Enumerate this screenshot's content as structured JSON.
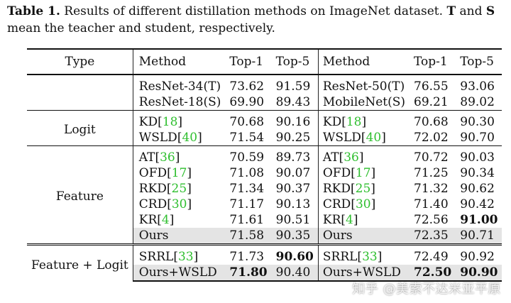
{
  "caption": {
    "label": "Table 1.",
    "text_a": " Results of different distillation methods on ImageNet dataset. ",
    "T": "T",
    "and": " and ",
    "S": "S",
    "text_b": " mean the teacher and student, respectively."
  },
  "header": {
    "type": "Type",
    "method1": "Method",
    "top1a": "Top-1",
    "top5a": "Top-5",
    "method2": "Method",
    "top1b": "Top-1",
    "top5b": "Top-5"
  },
  "baseline": [
    {
      "m1": "ResNet-34(T)",
      "a1": "73.62",
      "a5": "91.59",
      "m2": "ResNet-50(T)",
      "b1": "76.55",
      "b5": "93.06"
    },
    {
      "m1": "ResNet-18(S)",
      "a1": "69.90",
      "a5": "89.43",
      "m2": "MobileNet(S)",
      "b1": "69.21",
      "b5": "89.02"
    }
  ],
  "logit": {
    "label": "Logit",
    "rows": [
      {
        "m1": "KD",
        "c1": "18",
        "a1": "70.68",
        "a5": "90.16",
        "m2": "KD",
        "c2": "18",
        "b1": "70.68",
        "b5": "90.30"
      },
      {
        "m1": "WSLD",
        "c1": "40",
        "a1": "71.54",
        "a5": "90.25",
        "m2": "WSLD",
        "c2": "40",
        "b1": "72.02",
        "b5": "90.70"
      }
    ]
  },
  "feature": {
    "label": "Feature",
    "rows": [
      {
        "m1": "AT",
        "c1": "36",
        "a1": "70.59",
        "a5": "89.73",
        "m2": "AT",
        "c2": "36",
        "b1": "70.72",
        "b5": "90.03"
      },
      {
        "m1": "OFD",
        "c1": "17",
        "a1": "71.08",
        "a5": "90.07",
        "m2": "OFD",
        "c2": "17",
        "b1": "71.25",
        "b5": "90.34"
      },
      {
        "m1": "RKD",
        "c1": "25",
        "a1": "71.34",
        "a5": "90.37",
        "m2": "RKD",
        "c2": "25",
        "b1": "71.32",
        "b5": "90.62"
      },
      {
        "m1": "CRD",
        "c1": "30",
        "a1": "71.17",
        "a5": "90.13",
        "m2": "CRD",
        "c2": "30",
        "b1": "71.40",
        "b5": "90.42"
      },
      {
        "m1": "KR",
        "c1": "4",
        "a1": "71.61",
        "a5": "90.51",
        "m2": "KR",
        "c2": "4",
        "b1": "72.56",
        "b5": "91.00"
      }
    ],
    "ours": {
      "m1": "Ours",
      "a1": "71.58",
      "a5": "90.35",
      "m2": "Ours",
      "b1": "72.35",
      "b5": "90.71"
    }
  },
  "combo": {
    "label": "Feature + Logit",
    "rows": [
      {
        "m1": "SRRL",
        "c1": "33",
        "a1": "71.73",
        "a5": "90.60",
        "m2": "SRRL",
        "c2": "33",
        "b1": "72.49",
        "b5": "90.92"
      },
      {
        "m1": "Ours+WSLD",
        "a1": "71.80",
        "a5": "90.40",
        "m2": "Ours+WSLD",
        "b1": "72.50",
        "b5": "90.90"
      }
    ]
  },
  "watermark": "知乎 @美索不达米亚平原"
}
